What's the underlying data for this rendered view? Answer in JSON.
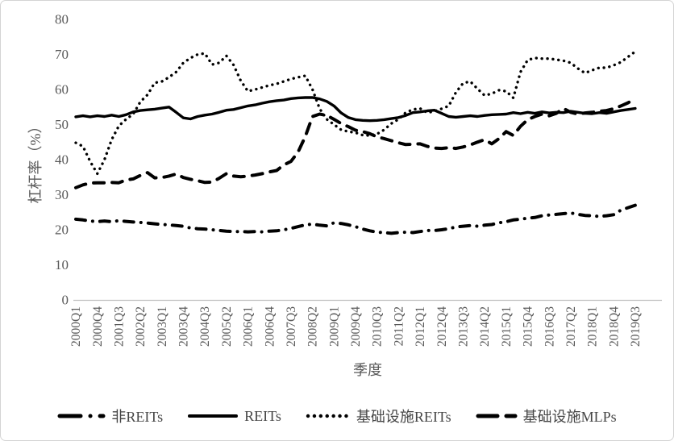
{
  "chart_data": {
    "type": "line",
    "title": "",
    "xlabel": "季度",
    "ylabel": "杠杆率（%）",
    "ylim": [
      0,
      80
    ],
    "yticks": [
      0,
      10,
      20,
      30,
      40,
      50,
      60,
      70,
      80
    ],
    "grid": false,
    "legend_position": "bottom",
    "x_quarters": [
      "2000Q1",
      "2000Q2",
      "2000Q3",
      "2000Q4",
      "2001Q1",
      "2001Q2",
      "2001Q3",
      "2001Q4",
      "2002Q1",
      "2002Q2",
      "2002Q3",
      "2002Q4",
      "2003Q1",
      "2003Q2",
      "2003Q3",
      "2003Q4",
      "2004Q1",
      "2004Q2",
      "2004Q3",
      "2004Q4",
      "2005Q1",
      "2005Q2",
      "2005Q3",
      "2005Q4",
      "2006Q1",
      "2006Q2",
      "2006Q3",
      "2006Q4",
      "2007Q1",
      "2007Q2",
      "2007Q3",
      "2007Q4",
      "2008Q1",
      "2008Q2",
      "2008Q3",
      "2008Q4",
      "2009Q1",
      "2009Q2",
      "2009Q3",
      "2009Q4",
      "2010Q1",
      "2010Q2",
      "2010Q3",
      "2010Q4",
      "2011Q1",
      "2011Q2",
      "2011Q3",
      "2011Q4",
      "2012Q1",
      "2012Q2",
      "2012Q3",
      "2012Q4",
      "2013Q1",
      "2013Q2",
      "2013Q3",
      "2013Q4",
      "2014Q1",
      "2014Q2",
      "2014Q3",
      "2014Q4",
      "2015Q1",
      "2015Q2",
      "2015Q3",
      "2015Q4",
      "2016Q1",
      "2016Q2",
      "2016Q3",
      "2016Q4",
      "2017Q1",
      "2017Q2",
      "2017Q3",
      "2017Q4",
      "2018Q1",
      "2018Q2",
      "2018Q3",
      "2018Q4",
      "2019Q1",
      "2019Q2",
      "2019Q3"
    ],
    "xtick_labels": [
      "2000Q1",
      "2000Q4",
      "2001Q3",
      "2002Q2",
      "2003Q1",
      "2003Q4",
      "2004Q3",
      "2005Q2",
      "2006Q1",
      "2006Q4",
      "2007Q3",
      "2008Q2",
      "2009Q1",
      "2009Q4",
      "2010Q3",
      "2011Q2",
      "2012Q1",
      "2012Q4",
      "2013Q3",
      "2014Q2",
      "2015Q1",
      "2015Q4",
      "2016Q3",
      "2017Q2",
      "2018Q1",
      "2018Q4",
      "2019Q3"
    ],
    "series": [
      {
        "name": "非REITs",
        "slug": "non-reits",
        "style": "dash-dot",
        "color": "#000000",
        "values": [
          23.0,
          22.8,
          22.5,
          22.3,
          22.5,
          22.3,
          22.6,
          22.4,
          22.2,
          22.1,
          21.9,
          21.7,
          21.5,
          21.4,
          21.2,
          21.0,
          20.5,
          20.3,
          20.2,
          20.0,
          19.8,
          19.6,
          19.5,
          19.5,
          19.4,
          19.5,
          19.4,
          19.6,
          19.7,
          20.0,
          20.4,
          20.9,
          21.4,
          21.6,
          21.3,
          21.1,
          22.0,
          21.8,
          21.4,
          20.9,
          20.2,
          19.7,
          19.3,
          19.2,
          19.0,
          19.2,
          19.3,
          19.2,
          19.5,
          19.8,
          19.8,
          20.0,
          20.3,
          20.8,
          21.0,
          21.2,
          21.0,
          21.3,
          21.5,
          22.0,
          22.3,
          22.8,
          23.0,
          23.3,
          23.5,
          24.0,
          24.2,
          24.4,
          24.6,
          24.8,
          24.4,
          24.1,
          24.0,
          23.8,
          24.0,
          24.3,
          25.6,
          26.3,
          27.0
        ]
      },
      {
        "name": "REITs",
        "slug": "reits",
        "style": "solid",
        "color": "#000000",
        "values": [
          52.2,
          52.5,
          52.2,
          52.5,
          52.3,
          52.7,
          52.3,
          52.8,
          53.6,
          54.0,
          54.2,
          54.4,
          54.7,
          55.0,
          53.5,
          51.9,
          51.6,
          52.3,
          52.7,
          53.0,
          53.5,
          54.1,
          54.3,
          54.8,
          55.3,
          55.6,
          56.1,
          56.5,
          56.8,
          57.0,
          57.4,
          57.6,
          57.7,
          57.7,
          57.3,
          56.6,
          55.3,
          53.3,
          52.0,
          51.4,
          51.2,
          51.1,
          51.2,
          51.4,
          51.7,
          52.0,
          52.6,
          53.4,
          53.6,
          53.9,
          54.1,
          53.2,
          52.3,
          52.1,
          52.3,
          52.5,
          52.3,
          52.6,
          52.8,
          52.9,
          53.0,
          53.4,
          53.1,
          53.5,
          53.2,
          53.6,
          53.3,
          53.5,
          53.4,
          53.8,
          53.5,
          53.2,
          53.1,
          53.4,
          53.2,
          53.6,
          54.0,
          54.3,
          54.6
        ]
      },
      {
        "name": "基础设施REITs",
        "slug": "infra-reits",
        "style": "dotted",
        "color": "#000000",
        "values": [
          44.8,
          43.8,
          39.5,
          36.0,
          40.0,
          45.7,
          49.6,
          51.5,
          53.0,
          56.5,
          58.5,
          61.9,
          62.3,
          63.5,
          65.0,
          67.6,
          69.0,
          70.0,
          70.3,
          67.1,
          67.6,
          69.6,
          67.0,
          62.5,
          59.5,
          60.0,
          60.6,
          61.2,
          61.6,
          62.3,
          63.0,
          63.5,
          63.9,
          60.0,
          54.5,
          51.5,
          50.0,
          48.5,
          48.0,
          47.7,
          47.0,
          46.9,
          47.3,
          48.5,
          50.3,
          51.5,
          53.4,
          54.3,
          54.6,
          53.4,
          53.8,
          54.5,
          55.3,
          59.2,
          61.8,
          62.3,
          60.2,
          58.3,
          58.8,
          59.8,
          59.5,
          57.6,
          65.0,
          68.4,
          69.0,
          68.8,
          68.8,
          68.5,
          68.2,
          67.6,
          66.0,
          64.7,
          65.5,
          66.2,
          66.2,
          66.9,
          67.8,
          69.3,
          70.8
        ]
      },
      {
        "name": "基础设施MLPs",
        "slug": "infra-mlps",
        "style": "dashed",
        "color": "#000000",
        "values": [
          32.0,
          32.8,
          33.3,
          33.4,
          33.4,
          33.5,
          33.4,
          34.2,
          34.5,
          35.5,
          36.3,
          34.8,
          34.9,
          35.3,
          35.9,
          34.9,
          34.4,
          34.0,
          33.5,
          33.6,
          34.7,
          36.0,
          35.3,
          35.1,
          35.3,
          35.6,
          36.0,
          36.5,
          36.9,
          38.5,
          39.5,
          42.2,
          46.6,
          52.3,
          53.0,
          52.6,
          51.5,
          50.3,
          49.4,
          48.4,
          48.0,
          47.4,
          46.5,
          46.0,
          45.4,
          44.8,
          44.3,
          44.4,
          44.5,
          43.8,
          43.3,
          43.2,
          43.4,
          43.2,
          43.6,
          44.2,
          45.0,
          45.7,
          44.5,
          46.0,
          48.0,
          46.9,
          49.5,
          51.4,
          52.3,
          53.0,
          52.5,
          53.2,
          54.6,
          53.5,
          53.0,
          53.3,
          53.5,
          53.8,
          54.0,
          54.5,
          55.3,
          56.2,
          57.4
        ]
      }
    ]
  },
  "colors": {
    "line": "#000000",
    "axis_line": "#bfbfbf",
    "tick_label": "#595959",
    "axis_title": "#595959",
    "legend_text": "#454545",
    "figure_border": "#d4d4d4",
    "background": "#ffffff"
  }
}
